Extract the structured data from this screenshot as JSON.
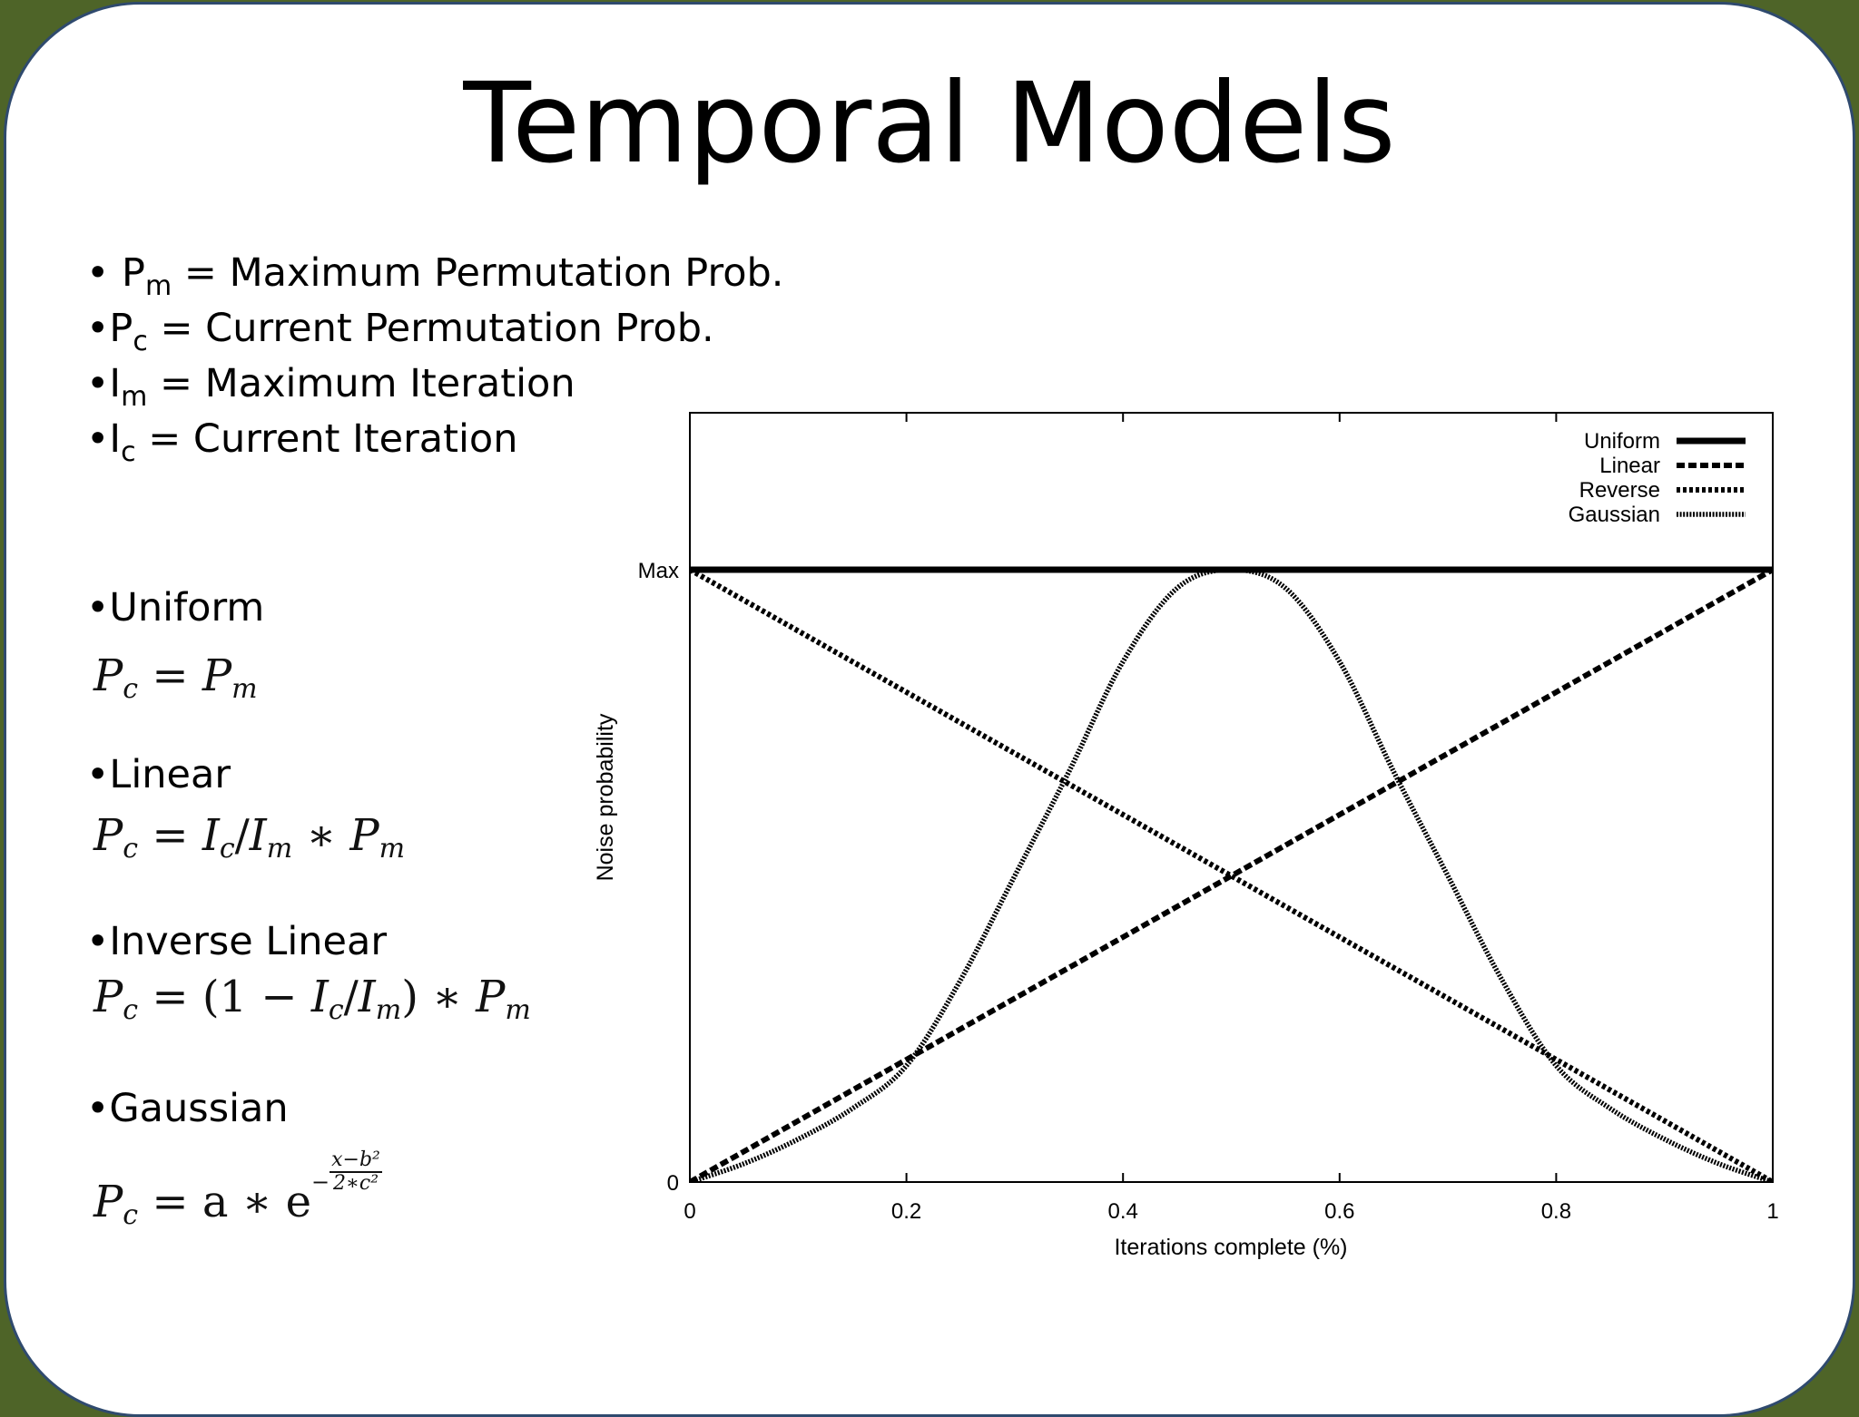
{
  "slide": {
    "title": "Temporal Models",
    "definitions": [
      {
        "bullet": "• ",
        "sym": "P",
        "sub": "m",
        "text": " = Maximum Permutation Prob."
      },
      {
        "bullet": "•",
        "sym": "P",
        "sub": "c",
        "text": " = Current Permutation Prob."
      },
      {
        "bullet": "•",
        "sym": "I",
        "sub": "m",
        "text": " = Maximum Iteration"
      },
      {
        "bullet": "•",
        "sym": "I",
        "sub": "c",
        "text": " = Current Iteration"
      }
    ],
    "models": [
      {
        "heading": "•Uniform",
        "formula": "P_c = P_m"
      },
      {
        "heading": "•Linear",
        "formula": "P_c = I_c/I_m * P_m"
      },
      {
        "heading": "•Inverse Linear",
        "formula": "P_c = (1 − I_c/I_m) * P_m"
      },
      {
        "heading": "•Gaussian",
        "formula": "P_c = a * e^(−(x−b^2)/(2*c^2))"
      }
    ],
    "formula_parts": {
      "uniform": {
        "lhs": "P",
        "lhs_sub": "c",
        "eq": " = ",
        "rhs": "P",
        "rhs_sub": "m"
      },
      "linear": {
        "a": "P",
        "a_sub": "c",
        "eq": " = ",
        "b": "I",
        "b_sub": "c",
        "slash": "/",
        "c": "I",
        "c_sub": "m",
        "op": " ∗ ",
        "d": "P",
        "d_sub": "m"
      },
      "inverse": {
        "a": "P",
        "a_sub": "c",
        "eq": " = (1 − ",
        "b": "I",
        "b_sub": "c",
        "slash": "/",
        "c": "I",
        "c_sub": "m",
        "close": ") ∗ ",
        "d": "P",
        "d_sub": "m"
      },
      "gaussian": {
        "a": "P",
        "a_sub": "c",
        "eq": " = a ∗ e",
        "exp_sign": "−",
        "num": "x−b²",
        "den": "2∗c²"
      }
    }
  },
  "chart_data": {
    "type": "line",
    "title": "",
    "xlabel": "Iterations complete (%)",
    "ylabel": "Noise probability",
    "xlim": [
      0,
      1
    ],
    "ylim": [
      0,
      1.25
    ],
    "x_ticks": [
      0,
      0.2,
      0.4,
      0.6,
      0.8,
      1
    ],
    "x_tick_labels": [
      "0",
      "0.2",
      "0.4",
      "0.6",
      "0.8",
      "1"
    ],
    "y_ticks": [
      0,
      1
    ],
    "y_tick_labels": [
      "0",
      "Max"
    ],
    "legend_position": "top-right",
    "grid": false,
    "series": [
      {
        "name": "Uniform",
        "style": "solid",
        "x": [
          0,
          1
        ],
        "y": [
          1,
          1
        ]
      },
      {
        "name": "Linear",
        "style": "dashed",
        "x": [
          0,
          1
        ],
        "y": [
          0,
          1
        ]
      },
      {
        "name": "Reverse",
        "style": "dotted",
        "x": [
          0,
          1
        ],
        "y": [
          1,
          0
        ]
      },
      {
        "name": "Gaussian",
        "style": "fine-dotted",
        "x": [
          0,
          0.05,
          0.1,
          0.15,
          0.2,
          0.25,
          0.3,
          0.35,
          0.4,
          0.45,
          0.5,
          0.55,
          0.6,
          0.65,
          0.7,
          0.75,
          0.8,
          0.85,
          0.9,
          0.95,
          1
        ],
        "y": [
          0.0,
          0.03,
          0.07,
          0.12,
          0.19,
          0.33,
          0.5,
          0.67,
          0.85,
          0.97,
          1.0,
          0.97,
          0.85,
          0.67,
          0.5,
          0.33,
          0.19,
          0.12,
          0.07,
          0.03,
          0.0
        ]
      }
    ]
  }
}
